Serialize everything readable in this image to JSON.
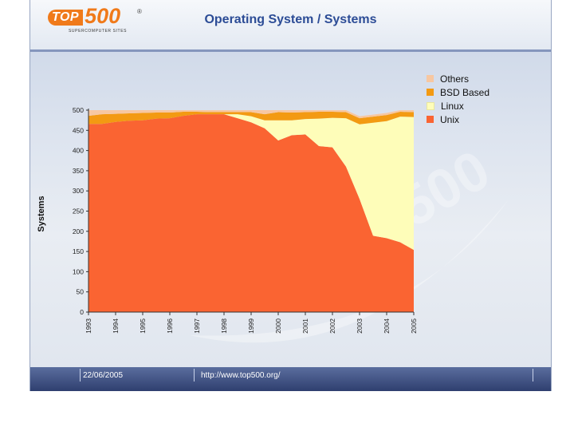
{
  "header": {
    "logo_text_top": "TOP",
    "logo_text_num": "500",
    "logo_sub": "SUPERCOMPUTER SITES",
    "logo_reg": "®",
    "title": "Operating System / Systems"
  },
  "footer": {
    "date": "22/06/2005",
    "url": "http://www.top500.org/"
  },
  "colors": {
    "Unix": "#fa6432",
    "Linux": "#fefdb9",
    "BSD Based": "#f39a12",
    "Others": "#f7c7a1"
  },
  "chart_data": {
    "type": "area",
    "stacked": true,
    "title": "Operating System / Systems",
    "xlabel": "",
    "ylabel": "Systems",
    "ylim": [
      0,
      500
    ],
    "yticks": [
      "500",
      "450",
      "400",
      "350",
      "300",
      "250",
      "200",
      "150",
      "100",
      "50",
      "0"
    ],
    "categories": [
      "1993",
      "1994",
      "1995",
      "1996",
      "1997",
      "1998",
      "1999",
      "2000",
      "2001",
      "2002",
      "2003",
      "2004",
      "2005"
    ],
    "x": [
      1993.0,
      1993.5,
      1994.0,
      1994.5,
      1995.0,
      1995.5,
      1996.0,
      1996.5,
      1997.0,
      1997.5,
      1998.0,
      1998.5,
      1999.0,
      1999.5,
      2000.0,
      2000.5,
      2001.0,
      2001.5,
      2002.0,
      2002.5,
      2003.0,
      2003.5,
      2004.0,
      2004.5,
      2005.0
    ],
    "legend": [
      "Others",
      "BSD Based",
      "Linux",
      "Unix"
    ],
    "series": [
      {
        "name": "Unix",
        "values": [
          466,
          466,
          471,
          474,
          475,
          479,
          480,
          486,
          490,
          490,
          490,
          480,
          470,
          455,
          425,
          438,
          440,
          411,
          408,
          360,
          280,
          189,
          183,
          173,
          154
        ]
      },
      {
        "name": "Linux",
        "values": [
          0,
          0,
          0,
          0,
          0,
          0,
          0,
          0,
          0,
          0,
          0,
          10,
          15,
          20,
          50,
          37,
          38,
          68,
          73,
          120,
          185,
          280,
          290,
          311,
          329
        ]
      },
      {
        "name": "BSD Based",
        "values": [
          20,
          24,
          20,
          18,
          18,
          15,
          14,
          10,
          6,
          5,
          5,
          5,
          10,
          15,
          20,
          19,
          17,
          17,
          15,
          15,
          15,
          15,
          15,
          12,
          12
        ]
      },
      {
        "name": "Others",
        "values": [
          14,
          10,
          9,
          8,
          7,
          6,
          6,
          4,
          4,
          5,
          5,
          5,
          5,
          10,
          5,
          6,
          5,
          4,
          4,
          5,
          5,
          5,
          5,
          4,
          5
        ]
      }
    ]
  }
}
